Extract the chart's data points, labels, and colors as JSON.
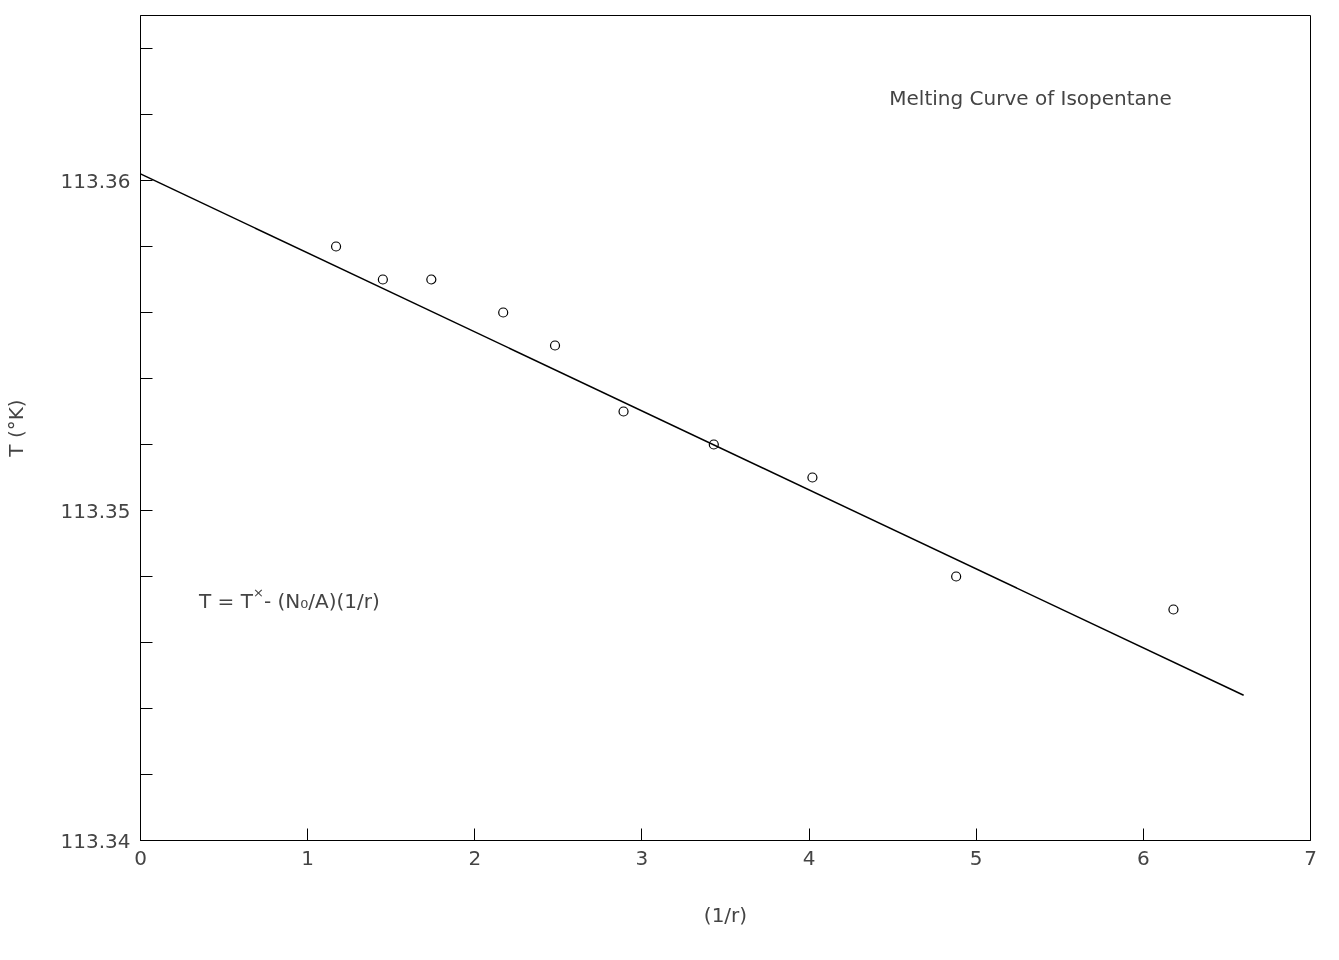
{
  "chart_data": {
    "type": "scatter",
    "xlabel": "(1/r)",
    "ylabel": "T (°K)",
    "annotations": [
      "Melting Curve of Isopentane",
      "T = T$^{×}$- (N₀/A)(1/r)"
    ],
    "series": [
      {
        "color": "#000000",
        "marker": "circle",
        "x": [
          1.17,
          1.45,
          1.74,
          2.17,
          2.48,
          2.89,
          3.43,
          4.02,
          4.88,
          6.18
        ],
        "values": [
          113.358,
          113.357,
          113.357,
          113.356,
          113.355,
          113.353,
          113.352,
          113.351,
          113.348,
          113.347
        ]
      },
      {
        "type": "line",
        "color": "#000000",
        "x": [
          0,
          6.6
        ],
        "values": [
          113.3602,
          113.3444
        ]
      }
    ],
    "xlim": [
      0,
      7
    ],
    "xticks": [
      0,
      1,
      2,
      3,
      4,
      5,
      6,
      7
    ],
    "ylim": [
      113.34,
      113.365
    ],
    "yticks": [
      113.34,
      {
        "value": 113.342,
        "label": null
      },
      {
        "value": 113.344,
        "label": null
      },
      {
        "value": 113.346,
        "label": null
      },
      {
        "value": 113.348,
        "label": null
      },
      113.35,
      {
        "value": 113.352,
        "label": null
      },
      {
        "value": 113.354,
        "label": null
      },
      {
        "value": 113.356,
        "label": null
      },
      {
        "value": 113.358,
        "label": null
      },
      113.36,
      {
        "value": 113.362,
        "label": null
      },
      {
        "value": 113.364,
        "label": null
      }
    ],
    "grid": false
  }
}
